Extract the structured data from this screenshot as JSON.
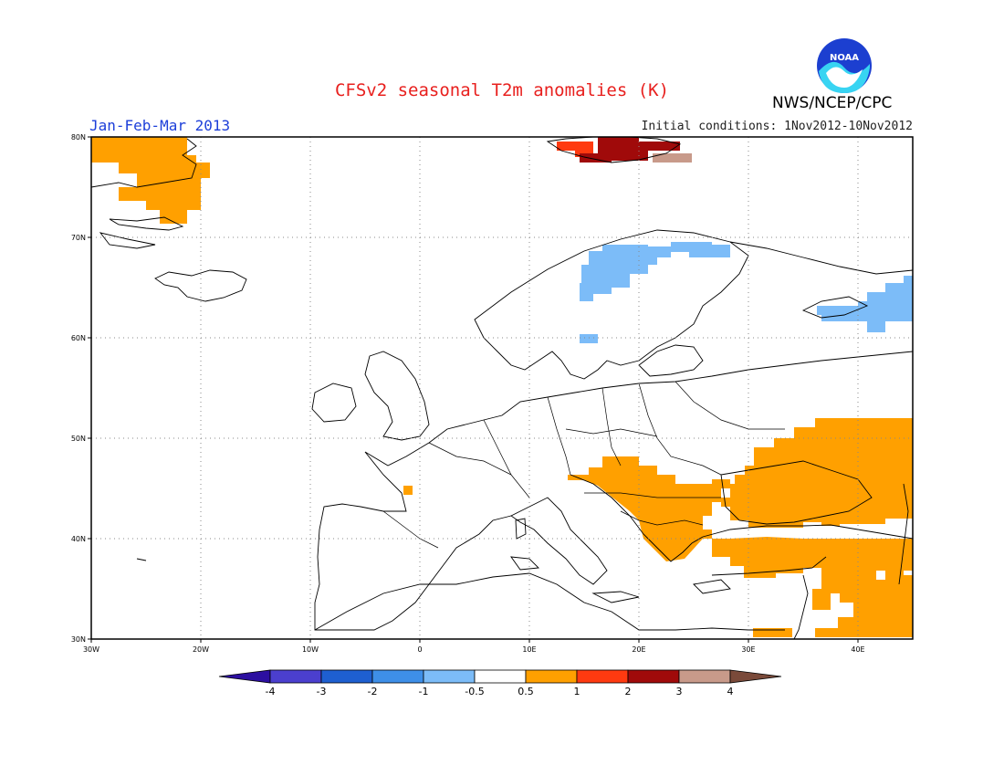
{
  "header": {
    "title": "CFSv2 seasonal T2m anomalies (K)",
    "period": "Jan-Feb-Mar 2013",
    "initial_conditions": "Initial conditions: 1Nov2012-10Nov2012",
    "agency": "NWS/NCEP/CPC",
    "logo_text": "NOAA"
  },
  "map": {
    "lon_range": [
      -30,
      45
    ],
    "lat_range": [
      30,
      80
    ],
    "lon_ticks": [
      {
        "value": -30,
        "label": "30W"
      },
      {
        "value": -20,
        "label": "20W"
      },
      {
        "value": -10,
        "label": "10W"
      },
      {
        "value": 0,
        "label": "0"
      },
      {
        "value": 10,
        "label": "10E"
      },
      {
        "value": 20,
        "label": "20E"
      },
      {
        "value": 30,
        "label": "30E"
      },
      {
        "value": 40,
        "label": "40E"
      }
    ],
    "lat_ticks": [
      {
        "value": 30,
        "label": "30N"
      },
      {
        "value": 40,
        "label": "40N"
      },
      {
        "value": 50,
        "label": "50N"
      },
      {
        "value": 60,
        "label": "60N"
      },
      {
        "value": 70,
        "label": "70N"
      },
      {
        "value": 80,
        "label": "80N"
      }
    ],
    "grid": true
  },
  "anomaly_regions": [
    {
      "name": "Greenland",
      "bin": "0.5-1",
      "lon": [
        -30,
        -20
      ],
      "lat": [
        70,
        80
      ]
    },
    {
      "name": "Svalbard",
      "bin": "1-2",
      "lon": [
        12,
        18
      ],
      "lat": [
        77,
        80
      ]
    },
    {
      "name": "Svalbard",
      "bin": "2-3",
      "lon": [
        17,
        24
      ],
      "lat": [
        77,
        80
      ]
    },
    {
      "name": "Svalbard",
      "bin": "3-4",
      "lon": [
        22,
        25
      ],
      "lat": [
        77,
        78
      ]
    },
    {
      "name": "Scandinavia",
      "bin": "-1--0.5",
      "lon": [
        15,
        30
      ],
      "lat": [
        62,
        69
      ]
    },
    {
      "name": "NW Russia",
      "bin": "-1--0.5",
      "lon": [
        36,
        45
      ],
      "lat": [
        61,
        66
      ]
    },
    {
      "name": "Balkans-Turkey-Caucasus",
      "bin": "0.5-1",
      "lon": [
        14,
        45
      ],
      "lat": [
        30,
        52
      ]
    }
  ],
  "colorbar": {
    "colors": [
      "#2c0fa0",
      "#4b3fce",
      "#1e5fd0",
      "#3e8fe8",
      "#7cbcf8",
      "#ffffff",
      "#ffa000",
      "#ff3a10",
      "#a00a0a",
      "#c89a8a",
      "#7a4a3a"
    ],
    "labels": [
      "-4",
      "-3",
      "-2",
      "-1",
      "-0.5",
      "0.5",
      "1",
      "2",
      "3",
      "4"
    ]
  }
}
